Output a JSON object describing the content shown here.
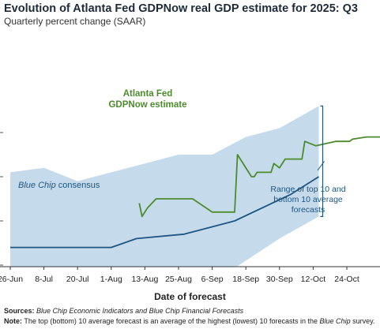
{
  "header": {
    "title": "Evolution of Atlanta Fed GDPNow real GDP estimate for 2025: Q3",
    "subtitle": "Quarterly percent change (SAAR)"
  },
  "footer": {
    "sources_label": "Sources:",
    "sources_text": " Blue Chip Economic Indicators and Blue Chip Financial Forecasts",
    "note_label": "Note:",
    "note_text_1": " The top (bottom) 10 average forecast is an average of the highest (lowest) 10 forecasts in the ",
    "note_italic": "Blue Chip",
    "note_text_2": " survey."
  },
  "chart_data": {
    "type": "line",
    "title": "Evolution of Atlanta Fed GDPNow real GDP estimate for 2025: Q3",
    "subtitle": "Quarterly percent change (SAAR)",
    "xlabel": "Date of forecast",
    "ylabel": "",
    "x_tick_labels": [
      "26-Jun",
      "8-Jul",
      "20-Jul",
      "1-Aug",
      "13-Aug",
      "25-Aug",
      "6-Sep",
      "18-Sep",
      "30-Sep",
      "12-Oct",
      "24-Oct"
    ],
    "x_tick_days": [
      0,
      12,
      24,
      36,
      48,
      60,
      72,
      84,
      96,
      108,
      120
    ],
    "x_range_days": [
      0,
      132
    ],
    "ylim": [
      0,
      5
    ],
    "grid": false,
    "series": [
      {
        "name": "Atlanta Fed GDPNow estimate",
        "color": "#4c8b2b",
        "points": [
          [
            46,
            2.4
          ],
          [
            47,
            2.1
          ],
          [
            49,
            2.3
          ],
          [
            52,
            2.5
          ],
          [
            65,
            2.5
          ],
          [
            72,
            2.2
          ],
          [
            80,
            2.2
          ],
          [
            81,
            3.5
          ],
          [
            86,
            3.0
          ],
          [
            87,
            3.0
          ],
          [
            88,
            3.1
          ],
          [
            93,
            3.1
          ],
          [
            94,
            3.3
          ],
          [
            96,
            3.2
          ],
          [
            98,
            3.4
          ],
          [
            104,
            3.4
          ],
          [
            105,
            3.8
          ],
          [
            109,
            3.7
          ],
          [
            116,
            3.8
          ],
          [
            121,
            3.8
          ],
          [
            122,
            3.85
          ],
          [
            127,
            3.9
          ],
          [
            135,
            3.9
          ],
          [
            143,
            4.0
          ]
        ]
      },
      {
        "name": "Blue Chip consensus",
        "color": "#1f5580",
        "points": [
          [
            0,
            1.4
          ],
          [
            36,
            1.4
          ],
          [
            45,
            1.6
          ],
          [
            62,
            1.7
          ],
          [
            80,
            2.0
          ],
          [
            100,
            2.6
          ],
          [
            110,
            3.0
          ]
        ]
      }
    ],
    "range_band": {
      "name": "Range of top 10 and bottom 10 average forecasts",
      "color": "#c5dbeb",
      "upper": [
        [
          0,
          3.1
        ],
        [
          12,
          3.2
        ],
        [
          24,
          2.9
        ],
        [
          36,
          3.1
        ],
        [
          48,
          3.3
        ],
        [
          60,
          3.5
        ],
        [
          72,
          3.5
        ],
        [
          84,
          3.9
        ],
        [
          96,
          4.1
        ],
        [
          110,
          4.6
        ]
      ],
      "lower": [
        [
          0,
          -0.2
        ],
        [
          12,
          -0.5
        ],
        [
          24,
          -0.2
        ],
        [
          36,
          0.2
        ],
        [
          48,
          0.4
        ],
        [
          60,
          0.7
        ],
        [
          72,
          0.6
        ],
        [
          84,
          1.1
        ],
        [
          96,
          1.6
        ],
        [
          110,
          2.1
        ]
      ]
    },
    "annotations": [
      {
        "name": "gdpnow-label",
        "lines": [
          "Atlanta Fed",
          "GDPNow estimate"
        ],
        "color": "#4c8b2b"
      },
      {
        "name": "consensus-label",
        "parts": [
          {
            "text": "Blue Chip",
            "italic": true
          },
          {
            "text": " consensus",
            "italic": false
          }
        ],
        "color": "#1f5580"
      },
      {
        "name": "range-label",
        "lines": [
          "Range of top 10 and",
          "bottom 10 average",
          "forecasts"
        ],
        "color": "#1f5580"
      }
    ]
  }
}
